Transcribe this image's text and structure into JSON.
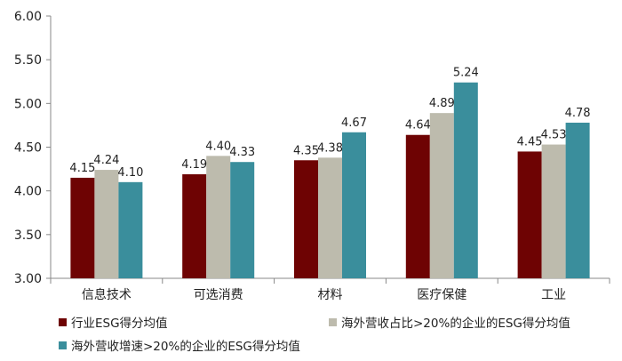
{
  "chart_data": {
    "type": "bar",
    "categories": [
      "信息技术",
      "可选消费",
      "材料",
      "医疗保健",
      "工业"
    ],
    "series": [
      {
        "name": "行业ESG得分均值",
        "values": [
          4.15,
          4.19,
          4.35,
          4.64,
          4.45
        ],
        "labels": [
          "4.15",
          "4.19",
          "4.35",
          "4.64",
          "4.45"
        ],
        "color": "#6E0303"
      },
      {
        "name": "海外营收占比>20%的企业的ESG得分均值",
        "values": [
          4.24,
          4.4,
          4.38,
          4.89,
          4.53
        ],
        "labels": [
          "4.24",
          "4.40",
          "4.38",
          "4.89",
          "4.53"
        ],
        "color": "#BDBBAD"
      },
      {
        "name": "海外营收增速>20%的企业的ESG得分均值",
        "values": [
          4.1,
          4.33,
          4.67,
          5.24,
          4.78
        ],
        "labels": [
          "4.10",
          "4.33",
          "4.67",
          "5.24",
          "4.78"
        ],
        "color": "#3A8E9C"
      }
    ],
    "ylim": [
      3.0,
      6.0
    ],
    "yticks": [
      "3.00",
      "3.50",
      "4.00",
      "4.50",
      "5.00",
      "5.50",
      "6.00"
    ],
    "grid": false,
    "legend_position": "bottom"
  }
}
